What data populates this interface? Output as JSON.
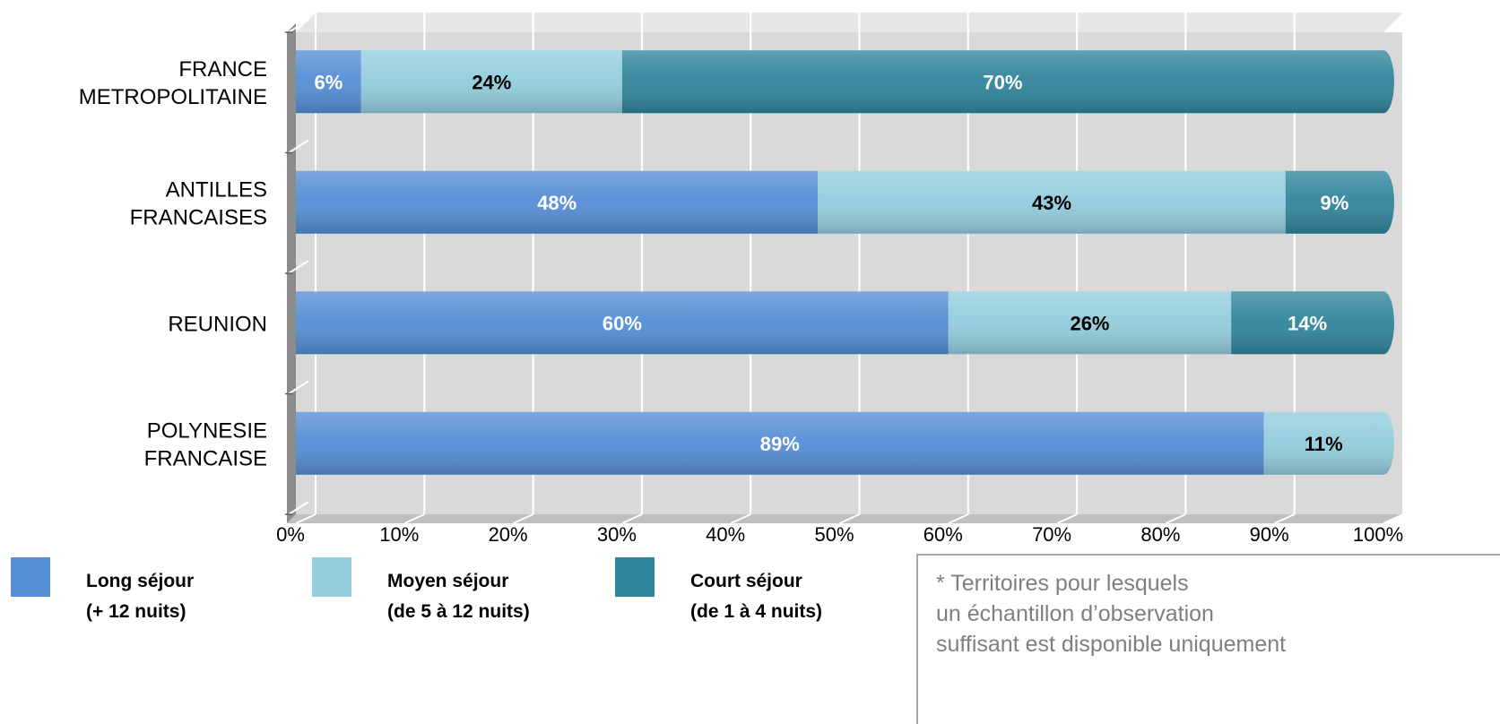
{
  "chart_data": {
    "type": "bar",
    "orientation": "horizontal",
    "stacked": "percent",
    "categories": [
      [
        "FRANCE",
        "METROPOLITAINE"
      ],
      [
        "ANTILLES",
        "FRANCAISES"
      ],
      [
        "REUNION"
      ],
      [
        "POLYNESIE",
        "FRANCAISE"
      ]
    ],
    "series": [
      {
        "key": "long",
        "color": "#558ed5",
        "label_color": "#ffffff",
        "values": [
          6,
          48,
          60,
          89
        ],
        "labels": [
          "6%",
          "48%",
          "60%",
          "89%"
        ]
      },
      {
        "key": "moyen",
        "color": "#93cddd",
        "label_color": "#000000",
        "values": [
          24,
          43,
          26,
          11
        ],
        "labels": [
          "24%",
          "43%",
          "26%",
          "11%"
        ]
      },
      {
        "key": "court",
        "color": "#31859c",
        "label_color": "#ffffff",
        "values": [
          70,
          9,
          14,
          0
        ],
        "labels": [
          "70%",
          "9%",
          "14%",
          ""
        ]
      }
    ],
    "xticks": [
      "0%",
      "10%",
      "20%",
      "30%",
      "40%",
      "50%",
      "60%",
      "70%",
      "80%",
      "90%",
      "100%"
    ],
    "xlim": [
      0,
      100
    ],
    "grid": true,
    "legend_position": "bottom-left"
  },
  "legend": [
    {
      "line1": "Long séjour",
      "line2": "(+ 12 nuits)",
      "color": "#558ed5"
    },
    {
      "line1": "Moyen séjour",
      "line2": "(de 5 à 12 nuits)",
      "color": "#93cddd"
    },
    {
      "line1": "Court séjour",
      "line2": "(de 1 à 4 nuits)",
      "color": "#31859c"
    }
  ],
  "note": {
    "line1": "*  Territoires pour lesquels",
    "line2": "un échantillon d’observation",
    "line3": "suffisant est disponible uniquement"
  }
}
